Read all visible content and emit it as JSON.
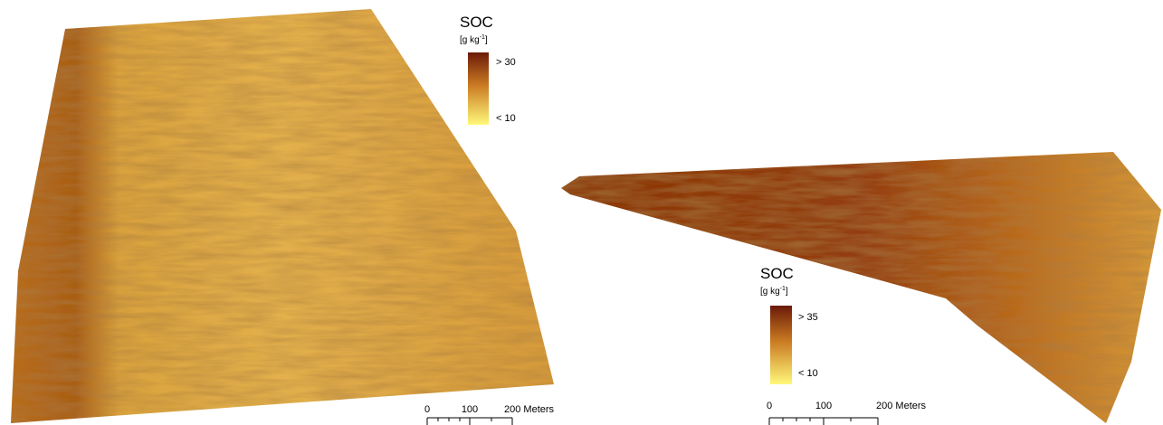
{
  "maps": [
    {
      "legend": {
        "title": "SOC",
        "unit": "[g kg",
        "unit_exp": "-1",
        "unit_end": "]",
        "high": "> 30",
        "low": "< 10"
      },
      "scale": {
        "labels": [
          "0",
          "100",
          "200 Meters"
        ]
      }
    },
    {
      "legend": {
        "title": "SOC",
        "unit": "[g kg",
        "unit_exp": "-1",
        "unit_end": "]",
        "high": "> 35",
        "low": "< 10"
      },
      "scale": {
        "labels": [
          "0",
          "100",
          "200 Meters"
        ]
      }
    }
  ]
}
